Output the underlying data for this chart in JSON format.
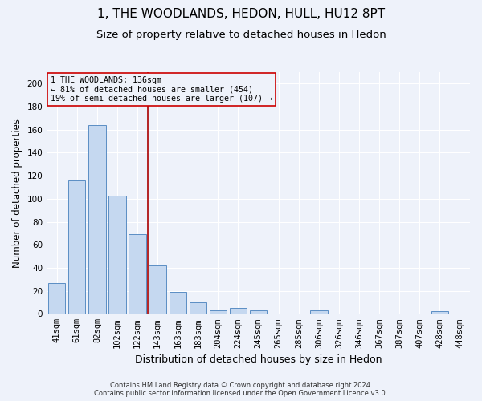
{
  "title": "1, THE WOODLANDS, HEDON, HULL, HU12 8PT",
  "subtitle": "Size of property relative to detached houses in Hedon",
  "xlabel": "Distribution of detached houses by size in Hedon",
  "ylabel": "Number of detached properties",
  "bar_labels": [
    "41sqm",
    "61sqm",
    "82sqm",
    "102sqm",
    "122sqm",
    "143sqm",
    "163sqm",
    "183sqm",
    "204sqm",
    "224sqm",
    "245sqm",
    "265sqm",
    "285sqm",
    "306sqm",
    "326sqm",
    "346sqm",
    "367sqm",
    "387sqm",
    "407sqm",
    "428sqm",
    "448sqm"
  ],
  "bar_values": [
    27,
    116,
    164,
    103,
    69,
    42,
    19,
    10,
    3,
    5,
    3,
    0,
    0,
    3,
    0,
    0,
    0,
    0,
    0,
    2,
    0
  ],
  "bar_color": "#c5d8f0",
  "bar_edge_color": "#5b8ec4",
  "vline_x_idx": 4.5,
  "vline_color": "#aa0000",
  "ylim": [
    0,
    210
  ],
  "yticks": [
    0,
    20,
    40,
    60,
    80,
    100,
    120,
    140,
    160,
    180,
    200
  ],
  "annotation_title": "1 THE WOODLANDS: 136sqm",
  "annotation_line1": "← 81% of detached houses are smaller (454)",
  "annotation_line2": "19% of semi-detached houses are larger (107) →",
  "annotation_box_color": "#cc0000",
  "footer_line1": "Contains HM Land Registry data © Crown copyright and database right 2024.",
  "footer_line2": "Contains public sector information licensed under the Open Government Licence v3.0.",
  "bg_color": "#eef2fa",
  "grid_color": "#d0d8e8",
  "title_fontsize": 11,
  "subtitle_fontsize": 9.5,
  "xlabel_fontsize": 9,
  "ylabel_fontsize": 8.5,
  "tick_fontsize": 7.5
}
